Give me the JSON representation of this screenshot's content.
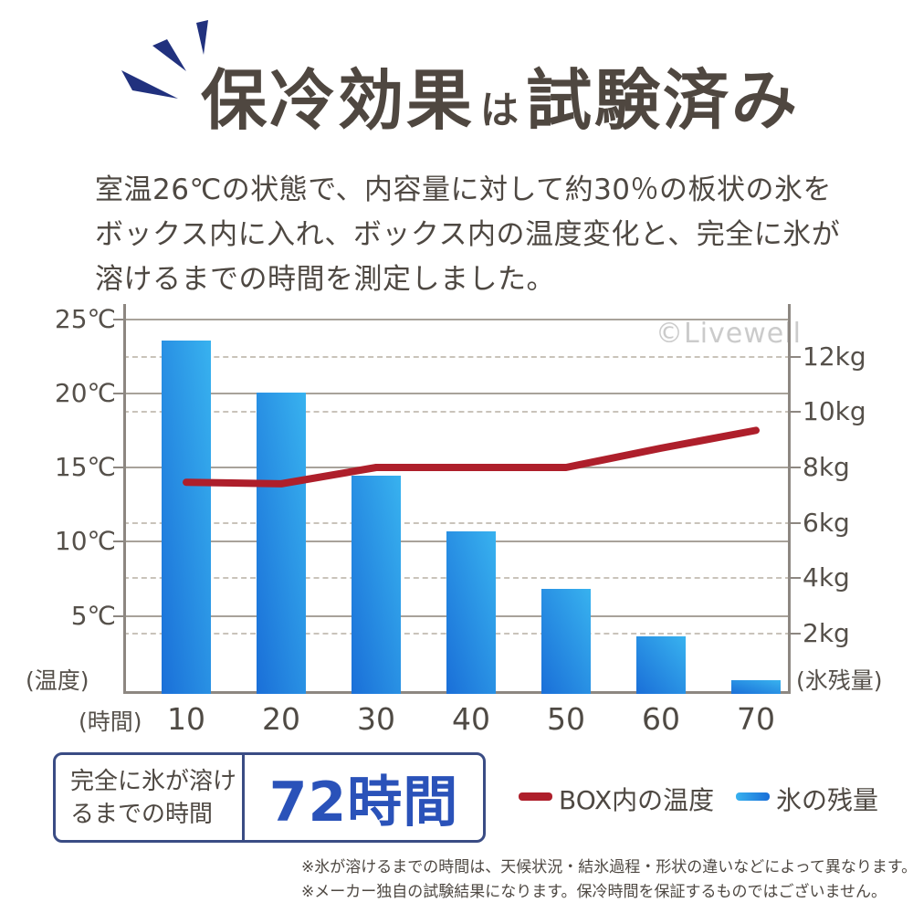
{
  "header": {
    "title_main": "保冷効果",
    "title_particle": "は",
    "title_rest": "試験済み"
  },
  "intro": {
    "lines": [
      "室温26℃の状態で、内容量に対して約30％の板状の氷を",
      "ボックス内に入れ、ボックス内の温度変化と、完全に氷が",
      "溶けるまでの時間を測定しました。"
    ]
  },
  "chart_data": {
    "type": "bar",
    "x": [
      10,
      20,
      30,
      40,
      50,
      60,
      70
    ],
    "x_axis_label": "(時間)",
    "left_axis": {
      "label": "(温度)",
      "unit": "℃",
      "ticks": [
        25,
        20,
        15,
        10,
        5
      ],
      "range": [
        0,
        26
      ]
    },
    "right_axis": {
      "label": "(氷残量)",
      "unit": "kg",
      "ticks": [
        12,
        10,
        8,
        6,
        4,
        2
      ],
      "range": [
        0,
        14
      ]
    },
    "grid": "solid temperature lines, dashed kg lines",
    "legend_position": "below chart",
    "series": [
      {
        "name": "BOX内の温度",
        "type": "line",
        "axis": "left",
        "unit": "℃",
        "color": "#ae1f2b",
        "values": [
          14,
          13.9,
          15,
          15,
          15,
          16.3,
          17.5
        ]
      },
      {
        "name": "氷の残量",
        "type": "bar",
        "axis": "right",
        "unit": "kg",
        "color_from": "#38b2ef",
        "color_to": "#1a6fd8",
        "values": [
          12.6,
          10.7,
          7.7,
          5.7,
          3.6,
          1.9,
          0.3
        ]
      }
    ],
    "watermark": "©Livewell"
  },
  "result_box": {
    "label_line1": "完全に氷が溶け",
    "label_line2": "るまでの時間",
    "value": "72時間"
  },
  "legend": {
    "items": [
      {
        "label": "BOX内の温度"
      },
      {
        "label": "氷の残量"
      }
    ]
  },
  "footnotes": [
    "※氷が溶けるまでの時間は、天候状況・結氷過程・形状の違いなどによって異なります。",
    "※メーカー独自の試験結果になります。保冷時間を保証するものではございません。"
  ],
  "colors": {
    "accent_navy": "#21317e",
    "line_red": "#ae1f2b",
    "bar_from": "#38b2ef",
    "bar_to": "#1a6fd8",
    "value_blue": "#2a52b9",
    "box_border": "#3a4c84",
    "watermark_gray": "#cbcbcb"
  }
}
